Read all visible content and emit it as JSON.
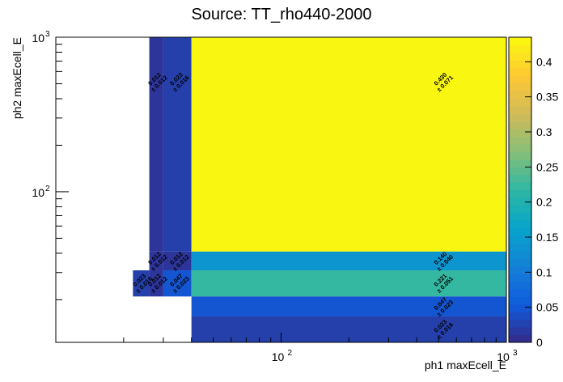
{
  "chart_data": {
    "type": "heatmap",
    "title": "Source: TT_rho440-2000",
    "x_label": "ph1 maxEcell_E",
    "y_label": "ph2 maxEcell_E",
    "xlim": [
      10,
      1000
    ],
    "ylim": [
      10.6,
      1000
    ],
    "zlim": [
      0,
      0.435
    ],
    "log_x": true,
    "log_y": true,
    "xticks": [
      {
        "value": 100,
        "label": "10",
        "exponent": "2"
      },
      {
        "value": 1000,
        "label": "10",
        "exponent": "3"
      }
    ],
    "yticks": [
      {
        "value": 100,
        "label": "10",
        "exponent": "2"
      },
      {
        "value": 1000,
        "label": "10",
        "exponent": "3"
      }
    ],
    "xminorticks": [
      20,
      30,
      40,
      50,
      60,
      70,
      80,
      90,
      200,
      300,
      400,
      500,
      600,
      700,
      800,
      900
    ],
    "yminorticks": [
      20,
      30,
      40,
      50,
      60,
      70,
      80,
      90,
      200,
      300,
      400,
      500,
      600,
      700,
      800,
      900
    ],
    "zticks": [
      0,
      0.05,
      0.1,
      0.15,
      0.2,
      0.25,
      0.3,
      0.35,
      0.4
    ],
    "palette": [
      "#352a87",
      "#0f5cdd",
      "#1481d6",
      "#06a4ca",
      "#2eb7a4",
      "#87bf77",
      "#d1bb59",
      "#fec832",
      "#f9fb0e"
    ],
    "cells": [
      {
        "x": [
          26,
          30
        ],
        "y": [
          41,
          1000
        ],
        "value": 0.012,
        "value_label": "0.012",
        "error": 0.012,
        "error_label": "± 0.012"
      },
      {
        "x": [
          30,
          40
        ],
        "y": [
          41,
          1000
        ],
        "value": 0.023,
        "value_label": "0.023",
        "error": 0.016,
        "error_label": "± 0.016"
      },
      {
        "x": [
          40,
          1000
        ],
        "y": [
          41,
          1000
        ],
        "value": 0.43,
        "value_label": "0.430",
        "error": 0.071,
        "error_label": "± 0.071"
      },
      {
        "x": [
          26,
          30
        ],
        "y": [
          31,
          41
        ],
        "value": 0.012,
        "value_label": "0.012",
        "error": 0.012,
        "error_label": "± 0.012"
      },
      {
        "x": [
          30,
          40
        ],
        "y": [
          31,
          41
        ],
        "value": 0.012,
        "value_label": "0.012",
        "error": 0.012,
        "error_label": "± 0.012"
      },
      {
        "x": [
          40,
          1000
        ],
        "y": [
          31,
          41
        ],
        "value": 0.14,
        "value_label": "0.140",
        "error": 0.04,
        "error_label": "± 0.040"
      },
      {
        "x": [
          22,
          26
        ],
        "y": [
          21,
          31
        ],
        "value": 0.023,
        "value_label": "0.023",
        "error": 0.016,
        "error_label": "± 0.016"
      },
      {
        "x": [
          26,
          30
        ],
        "y": [
          21,
          31
        ],
        "value": 0.012,
        "value_label": "0.012",
        "error": 0.012,
        "error_label": "± 0.012"
      },
      {
        "x": [
          30,
          40
        ],
        "y": [
          21,
          31
        ],
        "value": 0.047,
        "value_label": "0.047",
        "error": 0.023,
        "error_label": "± 0.023"
      },
      {
        "x": [
          40,
          1000
        ],
        "y": [
          21,
          31
        ],
        "value": 0.221,
        "value_label": "0.221",
        "error": 0.051,
        "error_label": "± 0.051"
      },
      {
        "x": [
          40,
          1000
        ],
        "y": [
          15.6,
          21
        ],
        "value": 0.047,
        "value_label": "0.047",
        "error": 0.023,
        "error_label": "± 0.023"
      },
      {
        "x": [
          40,
          1000
        ],
        "y": [
          10.6,
          15.6
        ],
        "value": 0.023,
        "value_label": "0.023",
        "error": 0.016,
        "error_label": "± 0.016"
      }
    ]
  }
}
